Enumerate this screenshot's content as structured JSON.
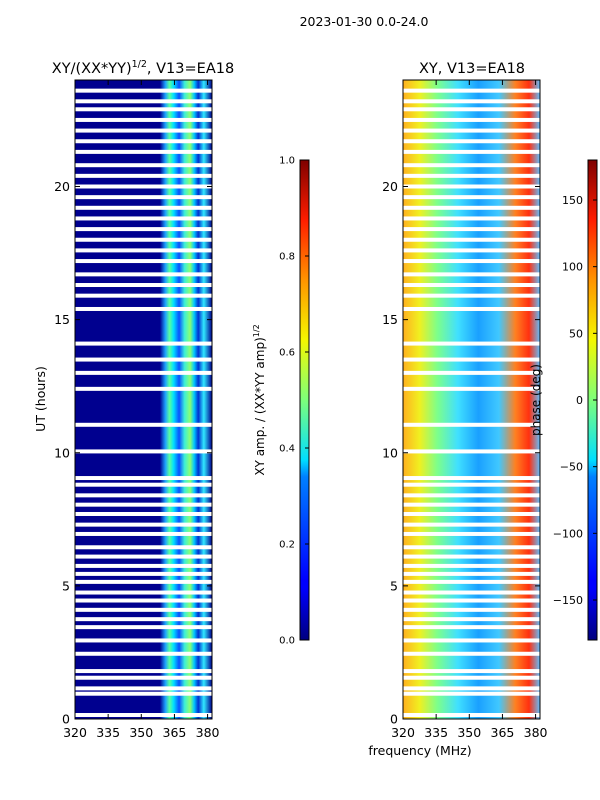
{
  "figure_title": "2023-01-30 0.0-24.0",
  "shared_xlabel": "frequency (MHz)",
  "chart_data": [
    {
      "type": "heatmap",
      "title_main": "XY/(XX*YY)",
      "title_sup": "1/2",
      "title_rest": ", V13=EA18",
      "ylabel": "UT (hours)",
      "xlim": [
        320,
        382
      ],
      "ylim": [
        0,
        24
      ],
      "xticks": [
        320,
        335,
        350,
        365,
        380
      ],
      "yticks": [
        0,
        5,
        10,
        15,
        20
      ],
      "colorbar": {
        "label_main": "XY amp. / (XX*YY amp)",
        "label_sup": "1/2",
        "range": [
          0.0,
          1.0
        ],
        "ticks": [
          "0.0",
          "0.2",
          "0.4",
          "0.6",
          "0.8",
          "1.0"
        ],
        "colormap": "jet"
      }
    },
    {
      "type": "heatmap",
      "title": "XY, V13=EA18",
      "xlim": [
        320,
        382
      ],
      "ylim": [
        0,
        24
      ],
      "xticks": [
        320,
        335,
        350,
        365,
        380
      ],
      "yticks": [
        0,
        5,
        10,
        15,
        20
      ],
      "colorbar": {
        "label": "phase (deg)",
        "range": [
          -180,
          180
        ],
        "ticks": [
          "150",
          "100",
          "50",
          "0",
          "−50",
          "−100",
          "−150"
        ],
        "tick_values": [
          150,
          100,
          50,
          0,
          -50,
          -100,
          -150
        ],
        "colormap": "jet"
      }
    }
  ],
  "flagged_ut_hours": [
    0.15,
    0.95,
    1.15,
    1.55,
    1.8,
    2.45,
    2.95,
    3.45,
    3.75,
    4.1,
    4.45,
    4.75,
    5.15,
    5.45,
    5.75,
    6.1,
    6.45,
    6.95,
    7.3,
    7.7,
    8.05,
    8.4,
    8.8,
    9.05,
    10.05,
    11.05,
    12.4,
    13.0,
    13.5,
    14.1,
    15.4,
    15.9,
    16.3,
    16.7,
    17.2,
    17.6,
    18.0,
    18.4,
    18.8,
    19.2,
    19.6,
    20.0,
    20.4,
    20.8,
    21.3,
    21.7,
    22.1,
    22.5,
    22.9,
    23.2,
    23.6
  ]
}
